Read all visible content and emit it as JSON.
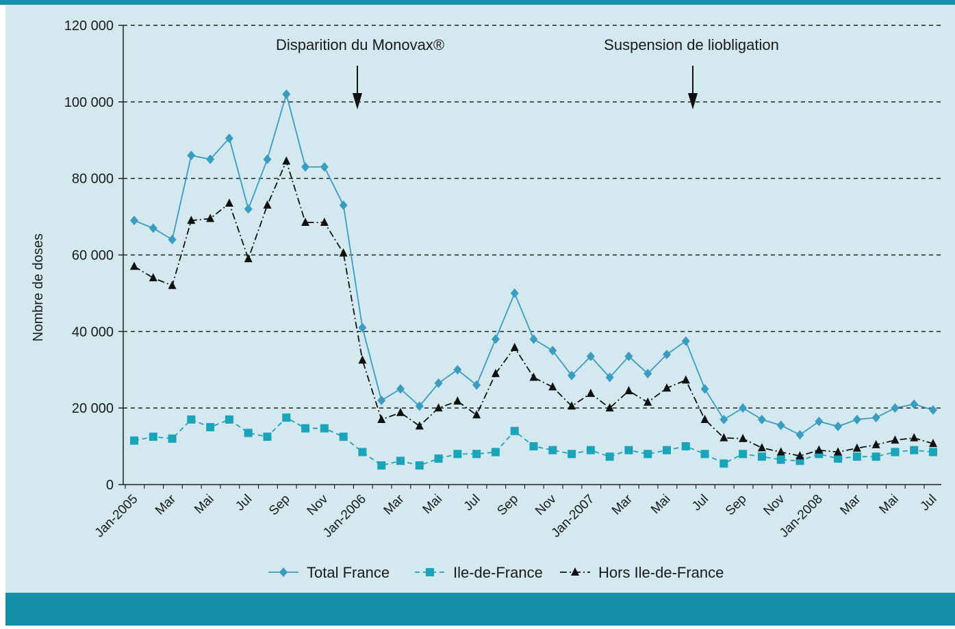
{
  "chart_data": {
    "type": "line",
    "y_label": "Nombre de doses",
    "annotations": [
      "Disparition du Monovax®",
      "Suspension de liobligation"
    ],
    "categories": [
      "Jan-2005",
      null,
      "Mar",
      null,
      "Mai",
      null,
      "Jul",
      null,
      "Sep",
      null,
      "Nov",
      null,
      "Jan-2006",
      null,
      "Mar",
      null,
      "Mai",
      null,
      "Jul",
      null,
      "Sep",
      null,
      "Nov",
      null,
      "Jan-2007",
      null,
      "Mar",
      null,
      "Mai",
      null,
      "Jul",
      null,
      "Sep",
      null,
      "Nov",
      null,
      "Jan-2008",
      null,
      "Mar",
      null,
      "Mai",
      null,
      "Jul"
    ],
    "ylim": [
      0,
      120000
    ],
    "yticks": [
      0,
      {
        "value": 20000,
        "label": "20 000"
      },
      {
        "value": 40000,
        "label": "40 000"
      },
      {
        "value": 60000,
        "label": "60 000"
      },
      {
        "value": 80000,
        "label": "80 000"
      },
      {
        "value": 100000,
        "label": "100 000"
      },
      {
        "value": 120000,
        "label": "120 000"
      }
    ],
    "grid": true,
    "series": [
      {
        "name": "Total France",
        "color": "#3a9cc0",
        "marker": "diamond",
        "dash": "solid",
        "values": [
          69000,
          67000,
          64000,
          86000,
          85000,
          90500,
          72000,
          85000,
          102000,
          83000,
          83000,
          73000,
          41000,
          22000,
          25000,
          20500,
          26500,
          30000,
          26000,
          38000,
          50000,
          38000,
          35000,
          28500,
          33500,
          28000,
          33500,
          29000,
          34000,
          37500,
          25000,
          17000,
          20000,
          17000,
          15500,
          13000,
          16500,
          15200,
          17000,
          17500,
          20000,
          21000,
          19500
        ]
      },
      {
        "name": "Ile-de-France",
        "color": "#1ba3b9",
        "marker": "square",
        "dash": "dashed",
        "values": [
          11500,
          12500,
          12000,
          17000,
          15000,
          17000,
          13500,
          12500,
          17500,
          14700,
          14700,
          12500,
          8500,
          5000,
          6200,
          5000,
          6800,
          8000,
          8000,
          8500,
          14000,
          10000,
          9000,
          8000,
          9000,
          7300,
          9000,
          8000,
          9000,
          10000,
          8000,
          5500,
          8000,
          7300,
          6500,
          6200,
          8000,
          6800,
          7300,
          7300,
          8500,
          9000,
          8500
        ]
      },
      {
        "name": "Hors Ile-de-France",
        "color": "#111111",
        "marker": "triangle",
        "dash": "dashdot",
        "values": [
          57000,
          54000,
          52000,
          69000,
          69500,
          73500,
          59000,
          73000,
          84500,
          68500,
          68500,
          60500,
          32500,
          17000,
          18800,
          15300,
          20000,
          21800,
          18200,
          29000,
          35800,
          28000,
          25500,
          20500,
          23800,
          20000,
          24500,
          21500,
          25200,
          27300,
          17000,
          12200,
          12000,
          9600,
          8500,
          7500,
          9000,
          8500,
          9500,
          10400,
          11600,
          12200,
          10700
        ]
      }
    ]
  }
}
